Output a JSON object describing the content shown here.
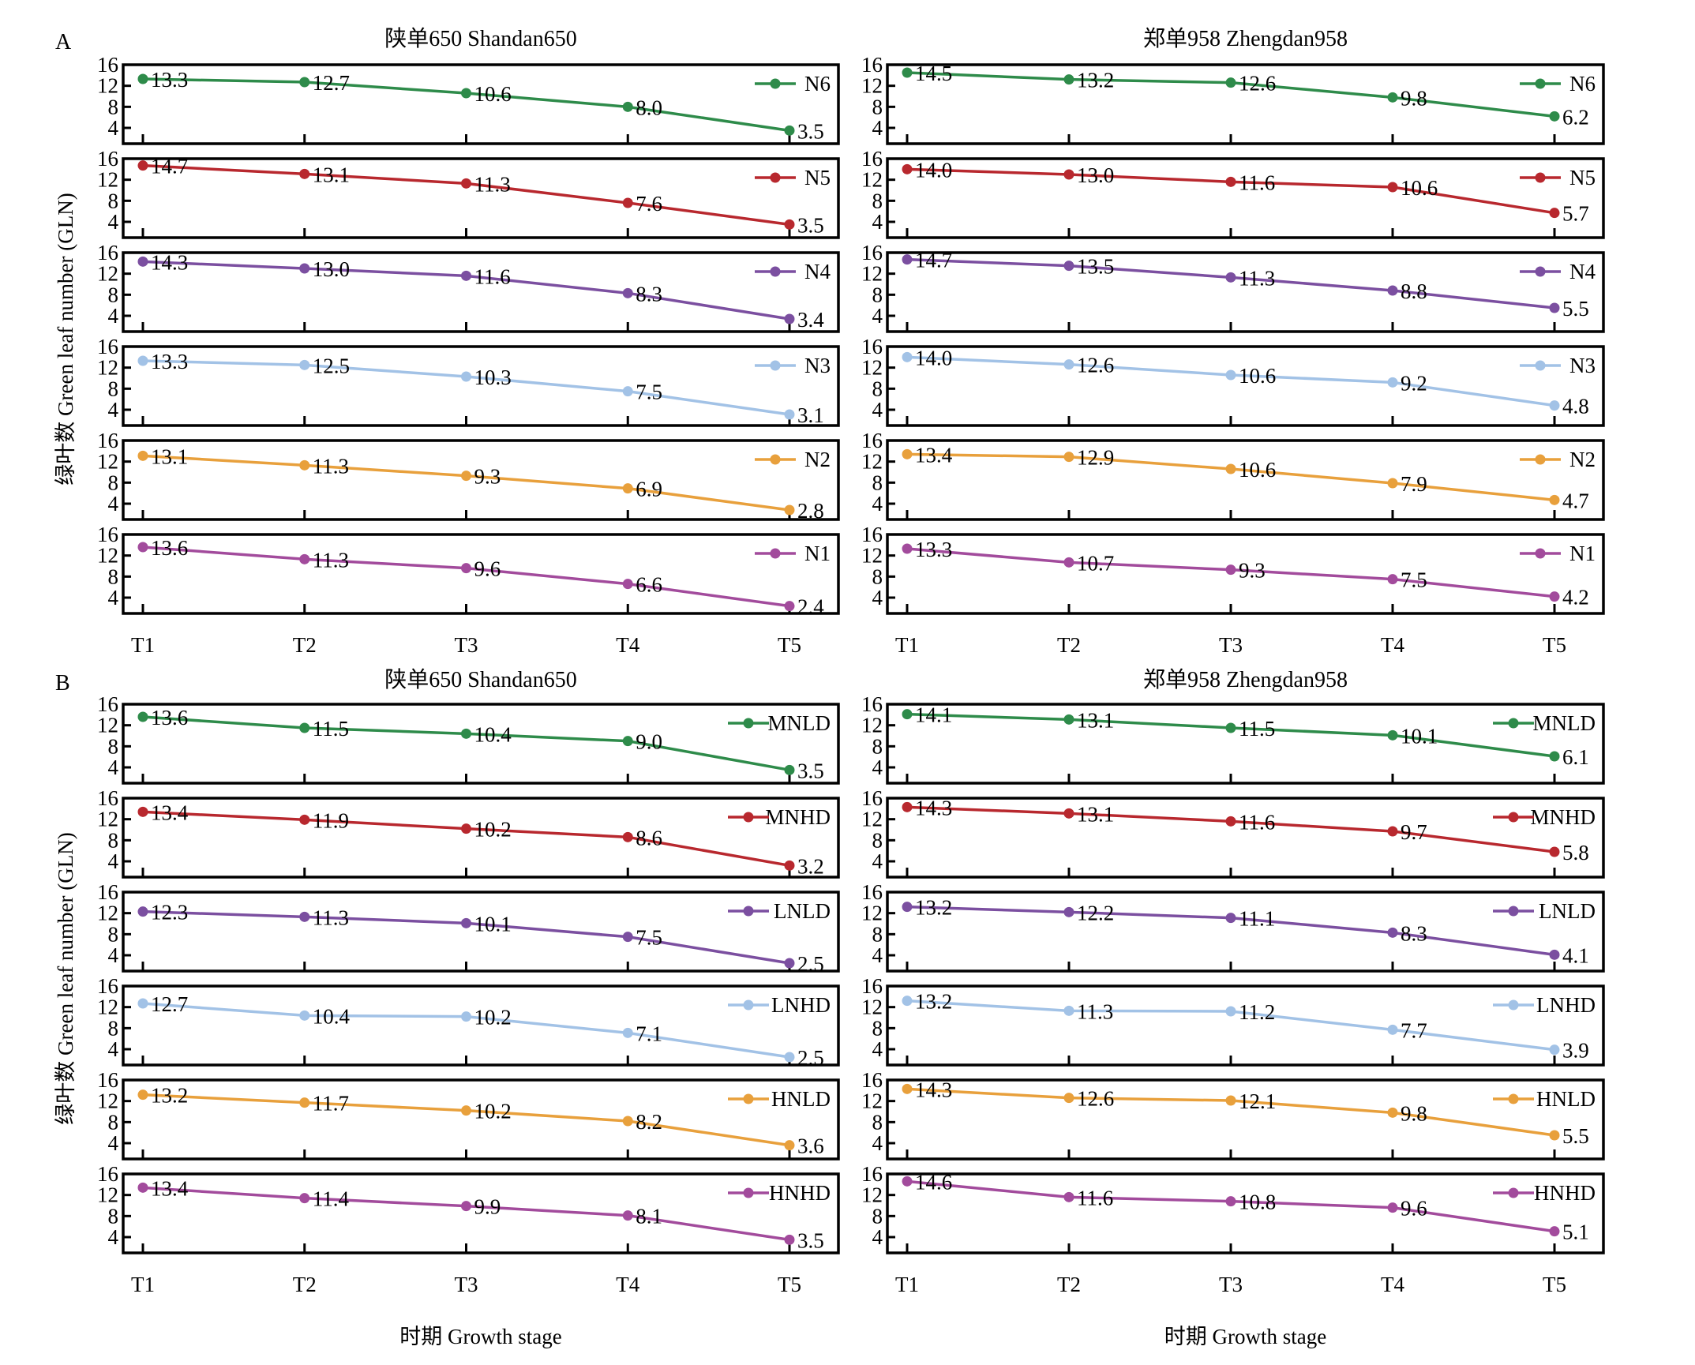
{
  "figure": {
    "ylabel": "绿叶数 Green leaf number (GLN)",
    "xlabel": "时期 Growth stage"
  },
  "chart_data": [
    {
      "panel": "A",
      "type": "line",
      "ylim": [
        1,
        16
      ],
      "yticks": [
        "4",
        "8",
        "12",
        "16"
      ],
      "categories": [
        "T1",
        "T2",
        "T3",
        "T4",
        "T5"
      ],
      "xlabel": "时期 Growth stage",
      "ylabel": "绿叶数 Green leaf number (GLN)",
      "legend_position": "top-right",
      "columns": [
        {
          "title": "陕单650 Shandan650",
          "series": [
            {
              "name": "N6",
              "color": "#2e8b4a",
              "values": [
                13.3,
                12.7,
                10.6,
                8.0,
                3.5
              ],
              "labels": [
                "13.3",
                "12.7",
                "10.6",
                "8.0",
                "3.5"
              ]
            },
            {
              "name": "N5",
              "color": "#b8282e",
              "values": [
                14.7,
                13.1,
                11.3,
                7.6,
                3.5
              ],
              "labels": [
                "14.7",
                "13.1",
                "11.3",
                "7.6",
                "3.5"
              ]
            },
            {
              "name": "N4",
              "color": "#7b4fa0",
              "values": [
                14.3,
                13.0,
                11.6,
                8.3,
                3.4
              ],
              "labels": [
                "14.3",
                "13.0",
                "11.6",
                "8.3",
                "3.4"
              ]
            },
            {
              "name": "N3",
              "color": "#a2c2e6",
              "values": [
                13.3,
                12.5,
                10.3,
                7.5,
                3.1
              ],
              "labels": [
                "13.3",
                "12.5",
                "10.3",
                "7.5",
                "3.1"
              ]
            },
            {
              "name": "N2",
              "color": "#e8a03c",
              "values": [
                13.1,
                11.3,
                9.3,
                6.9,
                2.8
              ],
              "labels": [
                "13.1",
                "11.3",
                "9.3",
                "6.9",
                "2.8"
              ]
            },
            {
              "name": "N1",
              "color": "#a24b9c",
              "values": [
                13.6,
                11.3,
                9.6,
                6.6,
                2.4
              ],
              "labels": [
                "13.6",
                "11.3",
                "9.6",
                "6.6",
                "2.4"
              ]
            }
          ]
        },
        {
          "title": "郑单958 Zhengdan958",
          "series": [
            {
              "name": "N6",
              "color": "#2e8b4a",
              "values": [
                14.5,
                13.2,
                12.6,
                9.8,
                6.2
              ],
              "labels": [
                "14.5",
                "13.2",
                "12.6",
                "9.8",
                "6.2"
              ]
            },
            {
              "name": "N5",
              "color": "#b8282e",
              "values": [
                14.0,
                13.0,
                11.6,
                10.6,
                5.7
              ],
              "labels": [
                "14.0",
                "13.0",
                "11.6",
                "10.6",
                "5.7"
              ]
            },
            {
              "name": "N4",
              "color": "#7b4fa0",
              "values": [
                14.7,
                13.5,
                11.3,
                8.8,
                5.5
              ],
              "labels": [
                "14.7",
                "13.5",
                "11.3",
                "8.8",
                "5.5"
              ]
            },
            {
              "name": "N3",
              "color": "#a2c2e6",
              "values": [
                14.0,
                12.6,
                10.6,
                9.2,
                4.8
              ],
              "labels": [
                "14.0",
                "12.6",
                "10.6",
                "9.2",
                "4.8"
              ]
            },
            {
              "name": "N2",
              "color": "#e8a03c",
              "values": [
                13.4,
                12.9,
                10.6,
                7.9,
                4.7
              ],
              "labels": [
                "13.4",
                "12.9",
                "10.6",
                "7.9",
                "4.7"
              ]
            },
            {
              "name": "N1",
              "color": "#a24b9c",
              "values": [
                13.3,
                10.7,
                9.3,
                7.5,
                4.2
              ],
              "labels": [
                "13.3",
                "10.7",
                "9.3",
                "7.5",
                "4.2"
              ]
            }
          ]
        }
      ]
    },
    {
      "panel": "B",
      "type": "line",
      "ylim": [
        1,
        16
      ],
      "yticks": [
        "4",
        "8",
        "12",
        "16"
      ],
      "categories": [
        "T1",
        "T2",
        "T3",
        "T4",
        "T5"
      ],
      "xlabel": "时期 Growth stage",
      "ylabel": "绿叶数 Green leaf number (GLN)",
      "legend_position": "top-right",
      "columns": [
        {
          "title": "陕单650 Shandan650",
          "series": [
            {
              "name": "MNLD",
              "color": "#2e8b4a",
              "values": [
                13.6,
                11.5,
                10.4,
                9.0,
                3.5
              ],
              "labels": [
                "13.6",
                "11.5",
                "10.4",
                "9.0",
                "3.5"
              ]
            },
            {
              "name": "MNHD",
              "color": "#b8282e",
              "values": [
                13.4,
                11.9,
                10.2,
                8.6,
                3.2
              ],
              "labels": [
                "13.4",
                "11.9",
                "10.2",
                "8.6",
                "3.2"
              ]
            },
            {
              "name": "LNLD",
              "color": "#7b4fa0",
              "values": [
                12.3,
                11.3,
                10.1,
                7.5,
                2.5
              ],
              "labels": [
                "12.3",
                "11.3",
                "10.1",
                "7.5",
                "2.5"
              ]
            },
            {
              "name": "LNHD",
              "color": "#a2c2e6",
              "values": [
                12.7,
                10.4,
                10.2,
                7.1,
                2.5
              ],
              "labels": [
                "12.7",
                "10.4",
                "10.2",
                "7.1",
                "2.5"
              ]
            },
            {
              "name": "HNLD",
              "color": "#e8a03c",
              "values": [
                13.2,
                11.7,
                10.2,
                8.2,
                3.6
              ],
              "labels": [
                "13.2",
                "11.7",
                "10.2",
                "8.2",
                "3.6"
              ]
            },
            {
              "name": "HNHD",
              "color": "#a24b9c",
              "values": [
                13.4,
                11.4,
                9.9,
                8.1,
                3.5
              ],
              "labels": [
                "13.4",
                "11.4",
                "9.9",
                "8.1",
                "3.5"
              ]
            }
          ]
        },
        {
          "title": "郑单958 Zhengdan958",
          "series": [
            {
              "name": "MNLD",
              "color": "#2e8b4a",
              "values": [
                14.1,
                13.1,
                11.5,
                10.1,
                6.1
              ],
              "labels": [
                "14.1",
                "13.1",
                "11.5",
                "10.1",
                "6.1"
              ]
            },
            {
              "name": "MNHD",
              "color": "#b8282e",
              "values": [
                14.3,
                13.1,
                11.6,
                9.7,
                5.8
              ],
              "labels": [
                "14.3",
                "13.1",
                "11.6",
                "9.7",
                "5.8"
              ]
            },
            {
              "name": "LNLD",
              "color": "#7b4fa0",
              "values": [
                13.2,
                12.2,
                11.1,
                8.3,
                4.1
              ],
              "labels": [
                "13.2",
                "12.2",
                "11.1",
                "8.3",
                "4.1"
              ]
            },
            {
              "name": "LNHD",
              "color": "#a2c2e6",
              "values": [
                13.2,
                11.3,
                11.2,
                7.7,
                3.9
              ],
              "labels": [
                "13.2",
                "11.3",
                "11.2",
                "7.7",
                "3.9"
              ]
            },
            {
              "name": "HNLD",
              "color": "#e8a03c",
              "values": [
                14.3,
                12.6,
                12.1,
                9.8,
                5.5
              ],
              "labels": [
                "14.3",
                "12.6",
                "12.1",
                "9.8",
                "5.5"
              ]
            },
            {
              "name": "HNHD",
              "color": "#a24b9c",
              "values": [
                14.6,
                11.6,
                10.8,
                9.6,
                5.1
              ],
              "labels": [
                "14.6",
                "11.6",
                "10.8",
                "9.6",
                "5.1"
              ]
            }
          ]
        }
      ]
    }
  ]
}
